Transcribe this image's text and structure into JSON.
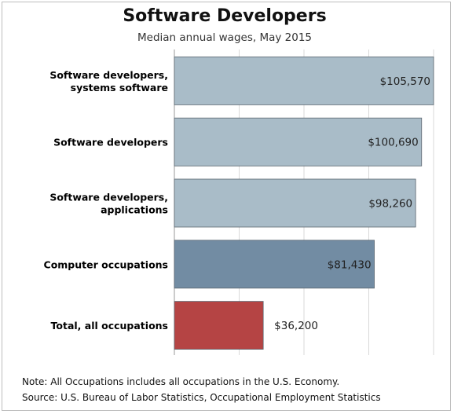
{
  "chart_data": {
    "type": "bar",
    "orientation": "horizontal",
    "title": "Software Developers",
    "subtitle": "Median annual wages, May 2015",
    "categories": [
      [
        "Software developers,",
        "systems software"
      ],
      [
        "Software developers"
      ],
      [
        "Software developers,",
        "applications"
      ],
      [
        "Computer occupations"
      ],
      [
        "Total, all occupations"
      ]
    ],
    "values": [
      105570,
      100690,
      98260,
      81430,
      36200
    ],
    "value_labels": [
      "$105,570",
      "$100,690",
      "$98,260",
      "$81,430",
      "$36,200"
    ],
    "colors": [
      "#a9bcc8",
      "#a9bcc8",
      "#a9bcc8",
      "#728ca3",
      "#b54444"
    ],
    "xlim": [
      0,
      105570
    ],
    "grid": true,
    "legend": "none"
  },
  "notes": {
    "note": "Note: All Occupations includes all occupations in the U.S. Economy.",
    "source": "Source: U.S. Bureau of Labor Statistics, Occupational Employment Statistics"
  }
}
